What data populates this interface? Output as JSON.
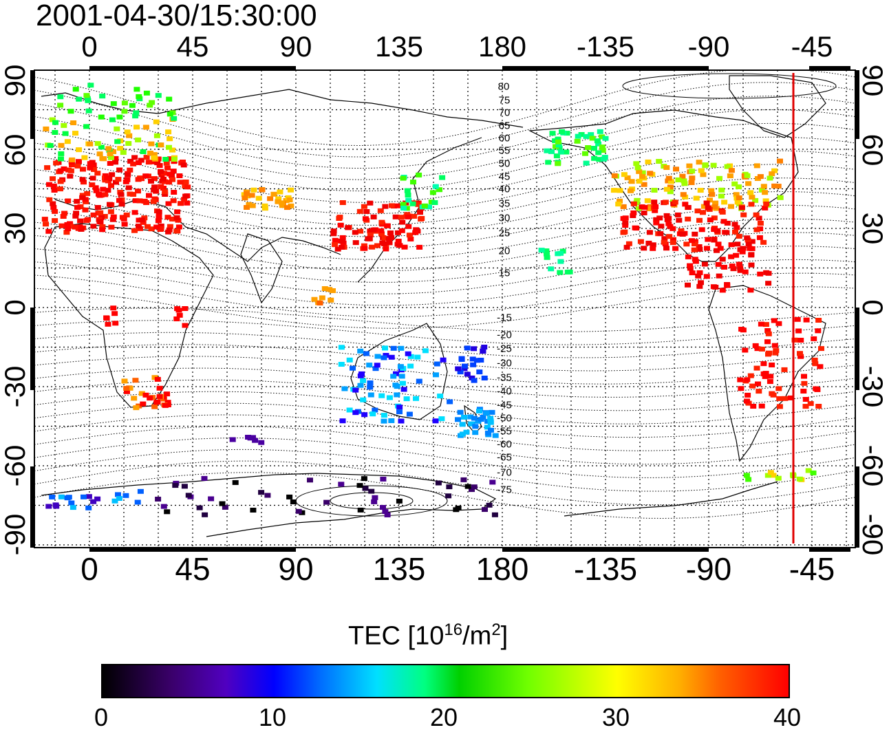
{
  "title": "2001-04-30/15:30:00",
  "top_ticks": [
    "0",
    "45",
    "90",
    "135",
    "180",
    "-135",
    "-90",
    "-45"
  ],
  "bottom_ticks": [
    "0",
    "45",
    "90",
    "135",
    "180",
    "-135",
    "-90",
    "-45"
  ],
  "left_ticks": [
    "90",
    "60",
    "30",
    "0",
    "-30",
    "-60",
    "-90"
  ],
  "right_ticks": [
    "90",
    "60",
    "30",
    "0",
    "-30",
    "-60",
    "-90"
  ],
  "contour_labels": [
    "80",
    "75",
    "70",
    "65",
    "60",
    "55",
    "50",
    "45",
    "40",
    "35",
    "30",
    "25",
    "20",
    "15",
    "-15",
    "-20",
    "-25",
    "-30",
    "-35",
    "-40",
    "-45",
    "-50",
    "-55",
    "-60",
    "-65",
    "-70",
    "-75"
  ],
  "colorbar": {
    "title_text": "TEC  [10",
    "title_sup": "16",
    "title_mid": "/m",
    "title_sup2": "2",
    "title_end": "]",
    "ticks": [
      "0",
      "10",
      "20",
      "30",
      "40"
    ]
  },
  "colors": {
    "meridian_marker": "#e00000",
    "scale": [
      "#000000",
      "#3a006a",
      "#0000ff",
      "#00e0ff",
      "#00d000",
      "#ffff00",
      "#ff6000",
      "#ff0000"
    ]
  }
}
